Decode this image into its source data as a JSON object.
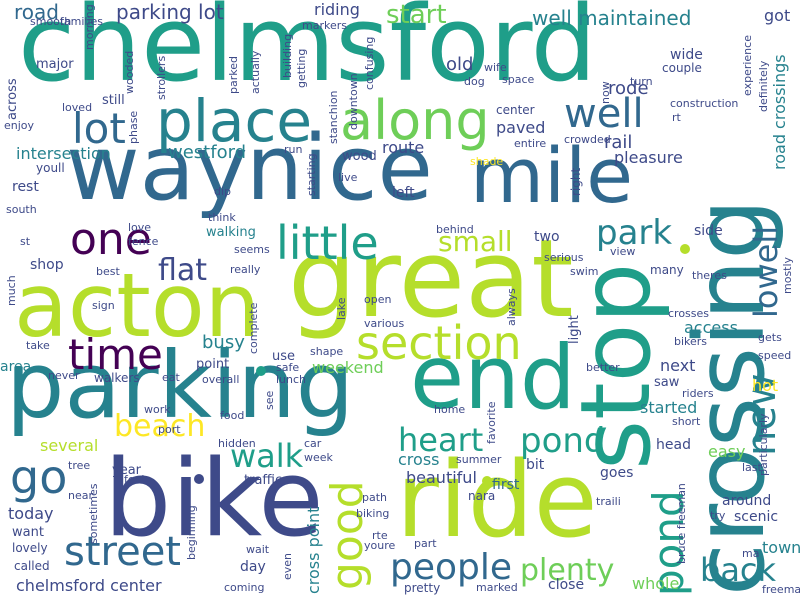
{
  "cloud": {
    "palette": [
      "#1f9e89",
      "#31688e",
      "#3e4a89",
      "#26828e",
      "#35b779",
      "#6ece58",
      "#b5de2b",
      "#440154",
      "#482878",
      "#fde725"
    ],
    "words": [
      {
        "text": "chelmsford",
        "color": "#1f9e89",
        "weight": 100
      },
      {
        "text": "way",
        "color": "#31688e",
        "weight": 70
      },
      {
        "text": "nice",
        "color": "#31688e",
        "weight": 70
      },
      {
        "text": "mile",
        "color": "#31688e",
        "weight": 70
      },
      {
        "text": "acton",
        "color": "#b5de2b",
        "weight": 75
      },
      {
        "text": "great",
        "color": "#b5de2b",
        "weight": 85
      },
      {
        "text": "parking",
        "color": "#26828e",
        "weight": 80
      },
      {
        "text": "end",
        "color": "#1f9e89",
        "weight": 70
      },
      {
        "text": "bike",
        "color": "#3e4a89",
        "weight": 80
      },
      {
        "text": "ride",
        "color": "#b5de2b",
        "weight": 80
      },
      {
        "text": "crossing",
        "color": "#26828e",
        "weight": 75
      },
      {
        "text": "stop",
        "color": "#1f9e89",
        "weight": 75
      },
      {
        "text": "place",
        "color": "#26828e",
        "weight": 40
      },
      {
        "text": "along",
        "color": "#6ece58",
        "weight": 40
      },
      {
        "text": "lot",
        "color": "#31688e",
        "weight": 30
      },
      {
        "text": "well",
        "color": "#31688e",
        "weight": 28
      },
      {
        "text": "one",
        "color": "#440154",
        "weight": 28
      },
      {
        "text": "little",
        "color": "#1f9e89",
        "weight": 30
      },
      {
        "text": "time",
        "color": "#440154",
        "weight": 28
      },
      {
        "text": "section",
        "color": "#b5de2b",
        "weight": 32
      },
      {
        "text": "street",
        "color": "#31688e",
        "weight": 28
      },
      {
        "text": "go",
        "color": "#31688e",
        "weight": 30
      },
      {
        "text": "good",
        "color": "#b5de2b",
        "weight": 28
      },
      {
        "text": "people",
        "color": "#31688e",
        "weight": 24
      },
      {
        "text": "plenty",
        "color": "#6ece58",
        "weight": 22
      },
      {
        "text": "back",
        "color": "#26828e",
        "weight": 22
      },
      {
        "text": "heart",
        "color": "#1f9e89",
        "weight": 22
      },
      {
        "text": "pond",
        "color": "#1f9e89",
        "weight": 22
      },
      {
        "text": "walk",
        "color": "#1f9e89",
        "weight": 22
      },
      {
        "text": "beach",
        "color": "#fde725",
        "weight": 20
      },
      {
        "text": "new",
        "color": "#26828e",
        "weight": 22
      },
      {
        "text": "lowell",
        "color": "#31688e",
        "weight": 20
      },
      {
        "text": "park",
        "color": "#26828e",
        "weight": 22
      },
      {
        "text": "small",
        "color": "#b5de2b",
        "weight": 18
      },
      {
        "text": "flat",
        "color": "#3e4a89",
        "weight": 18
      },
      {
        "text": "start",
        "color": "#6ece58",
        "weight": 16
      },
      {
        "text": "well maintained",
        "color": "#26828e",
        "weight": 14
      },
      {
        "text": "road",
        "color": "#31688e",
        "weight": 14
      },
      {
        "text": "parking lot",
        "color": "#3e4a89",
        "weight": 14
      },
      {
        "text": "riding",
        "color": "#3e4a89",
        "weight": 12
      },
      {
        "text": "got",
        "color": "#3e4a89",
        "weight": 12
      },
      {
        "text": "westford",
        "color": "#26828e",
        "weight": 12
      },
      {
        "text": "intersection",
        "color": "#26828e",
        "weight": 12
      },
      {
        "text": "route",
        "color": "#3e4a89",
        "weight": 12
      },
      {
        "text": "rail",
        "color": "#3e4a89",
        "weight": 12
      },
      {
        "text": "pleasure",
        "color": "#3e4a89",
        "weight": 12
      },
      {
        "text": "road crossings",
        "color": "#26828e",
        "weight": 12
      },
      {
        "text": "rode",
        "color": "#3e4a89",
        "weight": 12
      },
      {
        "text": "paved",
        "color": "#3e4a89",
        "weight": 12
      },
      {
        "text": "old",
        "color": "#3e4a89",
        "weight": 12
      },
      {
        "text": "busy",
        "color": "#26828e",
        "weight": 12
      },
      {
        "text": "weekend",
        "color": "#6ece58",
        "weight": 12
      },
      {
        "text": "cross",
        "color": "#26828e",
        "weight": 12
      },
      {
        "text": "access",
        "color": "#26828e",
        "weight": 12
      },
      {
        "text": "next",
        "color": "#3e4a89",
        "weight": 12
      },
      {
        "text": "hot",
        "color": "#fde725",
        "weight": 12
      },
      {
        "text": "started",
        "color": "#26828e",
        "weight": 12
      },
      {
        "text": "easy",
        "color": "#6ece58",
        "weight": 12
      },
      {
        "text": "beautiful",
        "color": "#3e4a89",
        "weight": 12
      },
      {
        "text": "first",
        "color": "#31688e",
        "weight": 12
      },
      {
        "text": "today",
        "color": "#3e4a89",
        "weight": 12
      },
      {
        "text": "several",
        "color": "#b5de2b",
        "weight": 12
      },
      {
        "text": "chelmsford center",
        "color": "#3e4a89",
        "weight": 12
      },
      {
        "text": "cross point",
        "color": "#26828e",
        "weight": 12
      },
      {
        "text": "whole",
        "color": "#6ece58",
        "weight": 12
      },
      {
        "text": "town",
        "color": "#26828e",
        "weight": 12
      },
      {
        "text": "freeman",
        "color": "#3e4a89",
        "weight": 8
      },
      {
        "text": "rest",
        "color": "#3e4a89",
        "weight": 10
      },
      {
        "text": "shop",
        "color": "#3e4a89",
        "weight": 10
      },
      {
        "text": "area",
        "color": "#26828e",
        "weight": 10
      },
      {
        "text": "two",
        "color": "#3e4a89",
        "weight": 10
      },
      {
        "text": "side",
        "color": "#3e4a89",
        "weight": 10
      },
      {
        "text": "wood",
        "color": "#3e4a89",
        "weight": 10
      },
      {
        "text": "center",
        "color": "#3e4a89",
        "weight": 8
      },
      {
        "text": "youll",
        "color": "#3e4a89",
        "weight": 8
      },
      {
        "text": "walking",
        "color": "#26828e",
        "weight": 8
      },
      {
        "text": "use",
        "color": "#3e4a89",
        "weight": 8
      },
      {
        "text": "point",
        "color": "#3e4a89",
        "weight": 8
      },
      {
        "text": "saw",
        "color": "#3e4a89",
        "weight": 8
      },
      {
        "text": "head",
        "color": "#3e4a89",
        "weight": 8
      },
      {
        "text": "goes",
        "color": "#3e4a89",
        "weight": 8
      },
      {
        "text": "bit",
        "color": "#3e4a89",
        "weight": 8
      },
      {
        "text": "year",
        "color": "#3e4a89",
        "weight": 8
      },
      {
        "text": "day",
        "color": "#3e4a89",
        "weight": 8
      },
      {
        "text": "want",
        "color": "#3e4a89",
        "weight": 8
      },
      {
        "text": "major",
        "color": "#3e4a89",
        "weight": 8
      },
      {
        "text": "across",
        "color": "#3e4a89",
        "weight": 8
      },
      {
        "text": "smooth",
        "color": "#3e4a89",
        "weight": 6
      },
      {
        "text": "enjoy",
        "color": "#3e4a89",
        "weight": 6
      },
      {
        "text": "south",
        "color": "#3e4a89",
        "weight": 6
      },
      {
        "text": "much",
        "color": "#3e4a89",
        "weight": 6
      },
      {
        "text": "take",
        "color": "#3e4a89",
        "weight": 6
      },
      {
        "text": "work",
        "color": "#3e4a89",
        "weight": 6
      },
      {
        "text": "food",
        "color": "#3e4a89",
        "weight": 6
      },
      {
        "text": "sign",
        "color": "#3e4a89",
        "weight": 6
      },
      {
        "text": "best",
        "color": "#3e4a89",
        "weight": 6
      },
      {
        "text": "really",
        "color": "#3e4a89",
        "weight": 6
      },
      {
        "text": "love",
        "color": "#3e4a89",
        "weight": 6
      },
      {
        "text": "fence",
        "color": "#3e4a89",
        "weight": 6
      },
      {
        "text": "dip",
        "color": "#3e4a89",
        "weight": 6
      },
      {
        "text": "think",
        "color": "#3e4a89",
        "weight": 6
      },
      {
        "text": "seems",
        "color": "#3e4a89",
        "weight": 6
      },
      {
        "text": "shade",
        "color": "#fde725",
        "weight": 6
      },
      {
        "text": "entire",
        "color": "#3e4a89",
        "weight": 6
      },
      {
        "text": "crowded",
        "color": "#3e4a89",
        "weight": 6
      },
      {
        "text": "right",
        "color": "#3e4a89",
        "weight": 6
      },
      {
        "text": "light",
        "color": "#3e4a89",
        "weight": 6
      },
      {
        "text": "view",
        "color": "#3e4a89",
        "weight": 6
      },
      {
        "text": "many",
        "color": "#3e4a89",
        "weight": 6
      },
      {
        "text": "theres",
        "color": "#3e4a89",
        "weight": 6
      },
      {
        "text": "mostly",
        "color": "#3e4a89",
        "weight": 6
      },
      {
        "text": "speed",
        "color": "#3e4a89",
        "weight": 6
      },
      {
        "text": "gets",
        "color": "#3e4a89",
        "weight": 6
      },
      {
        "text": "crosses",
        "color": "#3e4a89",
        "weight": 6
      },
      {
        "text": "bikers",
        "color": "#3e4a89",
        "weight": 6
      },
      {
        "text": "particularly",
        "color": "#3e4a89",
        "weight": 6
      },
      {
        "text": "short",
        "color": "#3e4a89",
        "weight": 6
      },
      {
        "text": "last",
        "color": "#3e4a89",
        "weight": 6
      },
      {
        "text": "around",
        "color": "#3e4a89",
        "weight": 6
      },
      {
        "text": "scenic",
        "color": "#3e4a89",
        "weight": 6
      },
      {
        "text": "try",
        "color": "#3e4a89",
        "weight": 6
      },
      {
        "text": "ma",
        "color": "#3e4a89",
        "weight": 6
      },
      {
        "text": "bruce freeman",
        "color": "#3e4a89",
        "weight": 6
      },
      {
        "text": "traili",
        "color": "#3e4a89",
        "weight": 6
      },
      {
        "text": "left",
        "color": "#3e4a89",
        "weight": 6
      },
      {
        "text": "swim",
        "color": "#3e4a89",
        "weight": 6
      },
      {
        "text": "serious",
        "color": "#3e4a89",
        "weight": 6
      },
      {
        "text": "open",
        "color": "#3e4a89",
        "weight": 6
      },
      {
        "text": "various",
        "color": "#3e4a89",
        "weight": 6
      },
      {
        "text": "lake",
        "color": "#3e4a89",
        "weight": 6
      },
      {
        "text": "always",
        "color": "#3e4a89",
        "weight": 6
      },
      {
        "text": "shape",
        "color": "#3e4a89",
        "weight": 6
      },
      {
        "text": "safe",
        "color": "#3e4a89",
        "weight": 6
      },
      {
        "text": "lunch",
        "color": "#3e4a89",
        "weight": 6
      },
      {
        "text": "overall",
        "color": "#3e4a89",
        "weight": 6
      },
      {
        "text": "port",
        "color": "#3e4a89",
        "weight": 6
      },
      {
        "text": "hidden",
        "color": "#3e4a89",
        "weight": 6
      },
      {
        "text": "eat",
        "color": "#3e4a89",
        "weight": 6
      },
      {
        "text": "walkers",
        "color": "#3e4a89",
        "weight": 6
      },
      {
        "text": "never",
        "color": "#3e4a89",
        "weight": 6
      },
      {
        "text": "complete",
        "color": "#3e4a89",
        "weight": 6
      },
      {
        "text": "see",
        "color": "#3e4a89",
        "weight": 6
      },
      {
        "text": "home",
        "color": "#3e4a89",
        "weight": 6
      },
      {
        "text": "riders",
        "color": "#3e4a89",
        "weight": 6
      },
      {
        "text": "better",
        "color": "#3e4a89",
        "weight": 6
      },
      {
        "text": "favorite",
        "color": "#3e4a89",
        "weight": 6
      },
      {
        "text": "car",
        "color": "#3e4a89",
        "weight": 6
      },
      {
        "text": "week",
        "color": "#3e4a89",
        "weight": 6
      },
      {
        "text": "summer",
        "color": "#3e4a89",
        "weight": 6
      },
      {
        "text": "tree",
        "color": "#3e4a89",
        "weight": 6
      },
      {
        "text": "near",
        "color": "#3e4a89",
        "weight": 6
      },
      {
        "text": "feel",
        "color": "#3e4a89",
        "weight": 6
      },
      {
        "text": "traffic",
        "color": "#3e4a89",
        "weight": 6
      },
      {
        "text": "sometimes",
        "color": "#3e4a89",
        "weight": 6
      },
      {
        "text": "beginning",
        "color": "#3e4a89",
        "weight": 6
      },
      {
        "text": "path",
        "color": "#3e4a89",
        "weight": 6
      },
      {
        "text": "biking",
        "color": "#3e4a89",
        "weight": 6
      },
      {
        "text": "nara",
        "color": "#3e4a89",
        "weight": 6
      },
      {
        "text": "rte",
        "color": "#3e4a89",
        "weight": 6
      },
      {
        "text": "youre",
        "color": "#3e4a89",
        "weight": 6
      },
      {
        "text": "part",
        "color": "#3e4a89",
        "weight": 6
      },
      {
        "text": "lovely",
        "color": "#3e4a89",
        "weight": 6
      },
      {
        "text": "called",
        "color": "#3e4a89",
        "weight": 6
      },
      {
        "text": "wait",
        "color": "#3e4a89",
        "weight": 6
      },
      {
        "text": "coming",
        "color": "#3e4a89",
        "weight": 6
      },
      {
        "text": "even",
        "color": "#3e4a89",
        "weight": 6
      },
      {
        "text": "pretty",
        "color": "#3e4a89",
        "weight": 6
      },
      {
        "text": "marked",
        "color": "#3e4a89",
        "weight": 6
      },
      {
        "text": "close",
        "color": "#3e4a89",
        "weight": 6
      },
      {
        "text": "morning",
        "color": "#3e4a89",
        "weight": 6
      },
      {
        "text": "families",
        "color": "#3e4a89",
        "weight": 6
      },
      {
        "text": "loved",
        "color": "#3e4a89",
        "weight": 6
      },
      {
        "text": "still",
        "color": "#3e4a89",
        "weight": 6
      },
      {
        "text": "phase",
        "color": "#3e4a89",
        "weight": 6
      },
      {
        "text": "strollers",
        "color": "#3e4a89",
        "weight": 6
      },
      {
        "text": "wooded",
        "color": "#3e4a89",
        "weight": 6
      },
      {
        "text": "parked",
        "color": "#3e4a89",
        "weight": 6
      },
      {
        "text": "actually",
        "color": "#3e4a89",
        "weight": 6
      },
      {
        "text": "building",
        "color": "#3e4a89",
        "weight": 6
      },
      {
        "text": "getting",
        "color": "#3e4a89",
        "weight": 6
      },
      {
        "text": "markers",
        "color": "#3e4a89",
        "weight": 6
      },
      {
        "text": "confusing",
        "color": "#3e4a89",
        "weight": 6
      },
      {
        "text": "stanchion",
        "color": "#3e4a89",
        "weight": 6
      },
      {
        "text": "downtown",
        "color": "#3e4a89",
        "weight": 6
      },
      {
        "text": "dog",
        "color": "#3e4a89",
        "weight": 6
      },
      {
        "text": "wife",
        "color": "#3e4a89",
        "weight": 6
      },
      {
        "text": "space",
        "color": "#3e4a89",
        "weight": 6
      },
      {
        "text": "run",
        "color": "#3e4a89",
        "weight": 6
      },
      {
        "text": "starting",
        "color": "#3e4a89",
        "weight": 6
      },
      {
        "text": "live",
        "color": "#3e4a89",
        "weight": 6
      },
      {
        "text": "behind",
        "color": "#3e4a89",
        "weight": 6
      },
      {
        "text": "st",
        "color": "#3e4a89",
        "weight": 6
      },
      {
        "text": "now",
        "color": "#3e4a89",
        "weight": 6
      },
      {
        "text": "turn",
        "color": "#3e4a89",
        "weight": 6
      },
      {
        "text": "rt",
        "color": "#3e4a89",
        "weight": 6
      },
      {
        "text": "wide",
        "color": "#3e4a89",
        "weight": 6
      },
      {
        "text": "couple",
        "color": "#3e4a89",
        "weight": 6
      },
      {
        "text": "construction",
        "color": "#3e4a89",
        "weight": 6
      },
      {
        "text": "experience",
        "color": "#3e4a89",
        "weight": 6
      },
      {
        "text": "definitely",
        "color": "#3e4a89",
        "weight": 6
      }
    ]
  }
}
